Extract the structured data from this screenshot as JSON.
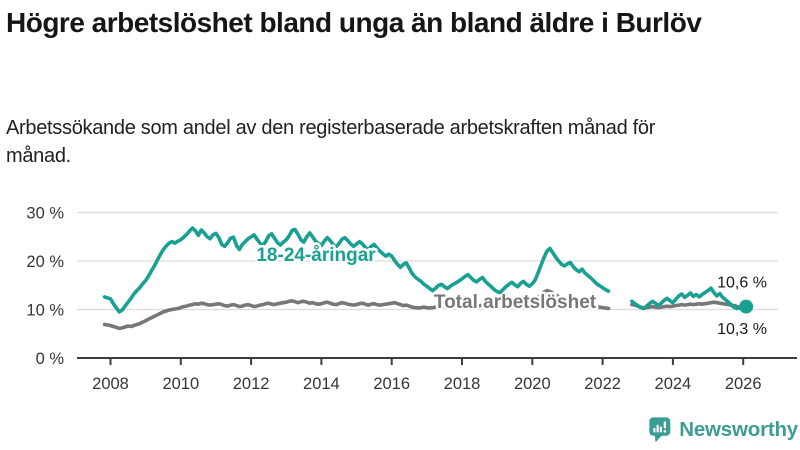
{
  "header": {
    "title": "Högre arbetslöshet bland unga än bland äldre i Burlöv",
    "subtitle": "Arbetssökande som andel av den registerbaserade arbetskraften månad för månad."
  },
  "footer": {
    "brand": "Newsworthy",
    "brand_color": "#3b9d93",
    "logo_icon": "speech-bubble-bar-chart-icon"
  },
  "colors": {
    "background": "#ffffff",
    "youth_line": "#18a193",
    "total_line": "#777777",
    "gridline": "#dcdcdc",
    "axis": "#3d3d3d",
    "axis_text": "#363636",
    "annotation_text": "#1a1a1a"
  },
  "chart_data": {
    "type": "line",
    "unit": "%",
    "grid": "horizontal",
    "x_axis": {
      "tick_years": [
        2008,
        2010,
        2012,
        2014,
        2016,
        2018,
        2020,
        2022,
        2024,
        2026
      ],
      "start": "2007-11",
      "end": "2026-02"
    },
    "y_axis": {
      "ticks": [
        0,
        10,
        20,
        30
      ],
      "tick_suffix": " %",
      "range": [
        0,
        31
      ]
    },
    "data_gap": {
      "from": "2022-04",
      "to": "2022-10"
    },
    "series": [
      {
        "id": "youth",
        "name": "18-24-åringar",
        "color": "#18a193",
        "inline_label": {
          "text": "18-24-åringar",
          "x_year": 2012.15,
          "y_value": 20.0
        },
        "latest_value": 10.6,
        "latest_label": "10,6 %",
        "latest_label_position": "above",
        "endpoint_dot": true,
        "start_month": "2007-11",
        "values": [
          12.6,
          12.4,
          12.2,
          11.2,
          10.3,
          9.5,
          9.9,
          10.7,
          11.5,
          12.3,
          13.2,
          13.9,
          14.5,
          15.3,
          16.0,
          16.9,
          18.0,
          19.0,
          20.2,
          21.3,
          22.3,
          23.1,
          23.7,
          24.0,
          23.7,
          24.1,
          24.4,
          24.9,
          25.5,
          26.2,
          26.8,
          26.2,
          25.3,
          26.4,
          25.8,
          25.0,
          24.6,
          25.4,
          25.7,
          24.8,
          23.4,
          23.0,
          23.8,
          24.7,
          24.9,
          23.2,
          22.4,
          23.4,
          24.0,
          24.6,
          25.0,
          25.4,
          24.5,
          23.7,
          23.2,
          24.0,
          25.2,
          25.6,
          24.7,
          23.8,
          23.3,
          23.9,
          24.4,
          25.2,
          26.3,
          26.5,
          25.5,
          24.4,
          23.9,
          25.0,
          25.8,
          25.0,
          24.1,
          23.6,
          23.2,
          24.1,
          24.8,
          24.2,
          23.4,
          22.9,
          23.6,
          24.5,
          24.8,
          24.2,
          23.5,
          23.0,
          23.5,
          24.0,
          23.5,
          22.8,
          22.3,
          23.0,
          23.4,
          22.7,
          22.0,
          21.5,
          21.0,
          21.4,
          21.0,
          20.1,
          19.3,
          18.7,
          19.3,
          19.6,
          18.5,
          17.4,
          16.7,
          16.2,
          15.8,
          15.2,
          14.8,
          14.3,
          13.9,
          14.4,
          15.0,
          15.2,
          14.7,
          14.3,
          14.8,
          15.2,
          15.5,
          15.9,
          16.3,
          16.8,
          17.2,
          16.6,
          16.0,
          15.7,
          16.2,
          16.6,
          15.8,
          15.2,
          14.7,
          14.1,
          13.7,
          13.5,
          14.1,
          14.7,
          15.2,
          15.6,
          15.1,
          14.7,
          15.4,
          15.8,
          15.2,
          14.8,
          15.3,
          16.1,
          17.6,
          19.2,
          20.7,
          22.0,
          22.6,
          21.7,
          20.8,
          20.0,
          19.3,
          19.0,
          19.4,
          19.7,
          18.8,
          18.2,
          17.8,
          18.3,
          17.5,
          17.0,
          16.5,
          15.9,
          15.3,
          14.9,
          14.5,
          14.1,
          13.8,
          null,
          null,
          null,
          null,
          null,
          null,
          null,
          11.7,
          11.2,
          10.8,
          10.4,
          10.2,
          10.7,
          11.2,
          11.7,
          11.3,
          10.8,
          11.3,
          11.9,
          12.3,
          11.8,
          11.4,
          12.1,
          12.8,
          13.2,
          12.5,
          12.9,
          13.4,
          12.7,
          13.1,
          12.6,
          13.1,
          13.5,
          13.9,
          14.4,
          13.5,
          12.8,
          13.3,
          12.5,
          12.0,
          11.5,
          10.9,
          10.4,
          10.2,
          10.4,
          10.5,
          10.6
        ]
      },
      {
        "id": "total",
        "name": "Total arbetslöshet",
        "color": "#777777",
        "inline_label": {
          "text": "Total arbetslöshet",
          "x_year": 2017.2,
          "y_value": 10.3
        },
        "latest_value": 10.3,
        "latest_label": "10,3 %",
        "latest_label_position": "below",
        "endpoint_dot": false,
        "start_month": "2007-11",
        "values": [
          6.9,
          6.8,
          6.7,
          6.5,
          6.3,
          6.1,
          6.2,
          6.4,
          6.6,
          6.5,
          6.7,
          6.9,
          7.1,
          7.4,
          7.7,
          8.0,
          8.3,
          8.6,
          8.9,
          9.2,
          9.5,
          9.7,
          9.9,
          10.0,
          10.1,
          10.2,
          10.4,
          10.6,
          10.7,
          10.9,
          11.0,
          11.2,
          11.1,
          11.3,
          11.2,
          11.0,
          10.9,
          11.0,
          11.1,
          11.2,
          11.0,
          10.8,
          10.7,
          10.9,
          11.0,
          10.8,
          10.6,
          10.7,
          10.9,
          11.0,
          10.8,
          10.6,
          10.7,
          10.9,
          11.0,
          11.2,
          11.3,
          11.1,
          11.0,
          11.2,
          11.3,
          11.4,
          11.5,
          11.7,
          11.8,
          11.6,
          11.4,
          11.6,
          11.7,
          11.5,
          11.3,
          11.4,
          11.2,
          11.1,
          11.2,
          11.4,
          11.5,
          11.3,
          11.1,
          11.0,
          11.2,
          11.4,
          11.3,
          11.1,
          11.0,
          10.9,
          11.0,
          11.2,
          11.3,
          11.1,
          10.9,
          11.1,
          11.2,
          11.0,
          10.9,
          11.0,
          11.1,
          11.2,
          11.3,
          11.4,
          11.2,
          11.0,
          10.8,
          10.9,
          10.7,
          10.5,
          10.4,
          10.3,
          10.4,
          10.5,
          10.4,
          10.3,
          10.4,
          10.5,
          10.6,
          10.7,
          10.6,
          10.5,
          10.6,
          10.7,
          10.8,
          10.9,
          10.8,
          10.7,
          10.8,
          10.9,
          10.8,
          10.7,
          10.8,
          10.9,
          10.8,
          10.6,
          10.5,
          10.4,
          10.3,
          10.4,
          10.5,
          10.6,
          10.7,
          10.8,
          10.9,
          10.8,
          10.9,
          11.0,
          10.9,
          11.0,
          11.3,
          11.8,
          12.5,
          13.1,
          13.6,
          13.9,
          13.7,
          13.4,
          13.0,
          12.6,
          12.4,
          12.3,
          12.2,
          12.1,
          12.0,
          11.8,
          11.6,
          11.5,
          11.3,
          11.1,
          10.9,
          10.8,
          10.6,
          10.5,
          10.4,
          10.3,
          10.2,
          null,
          null,
          null,
          null,
          null,
          null,
          null,
          11.0,
          10.9,
          10.7,
          10.5,
          10.3,
          10.4,
          10.5,
          10.6,
          10.5,
          10.4,
          10.5,
          10.6,
          10.7,
          10.6,
          10.7,
          10.8,
          10.9,
          11.0,
          10.9,
          11.0,
          11.1,
          11.0,
          11.1,
          11.2,
          11.1,
          11.2,
          11.3,
          11.4,
          11.5,
          11.4,
          11.3,
          11.2,
          11.1,
          11.0,
          10.9,
          10.8,
          10.6,
          10.5,
          10.4,
          10.3
        ]
      }
    ]
  }
}
